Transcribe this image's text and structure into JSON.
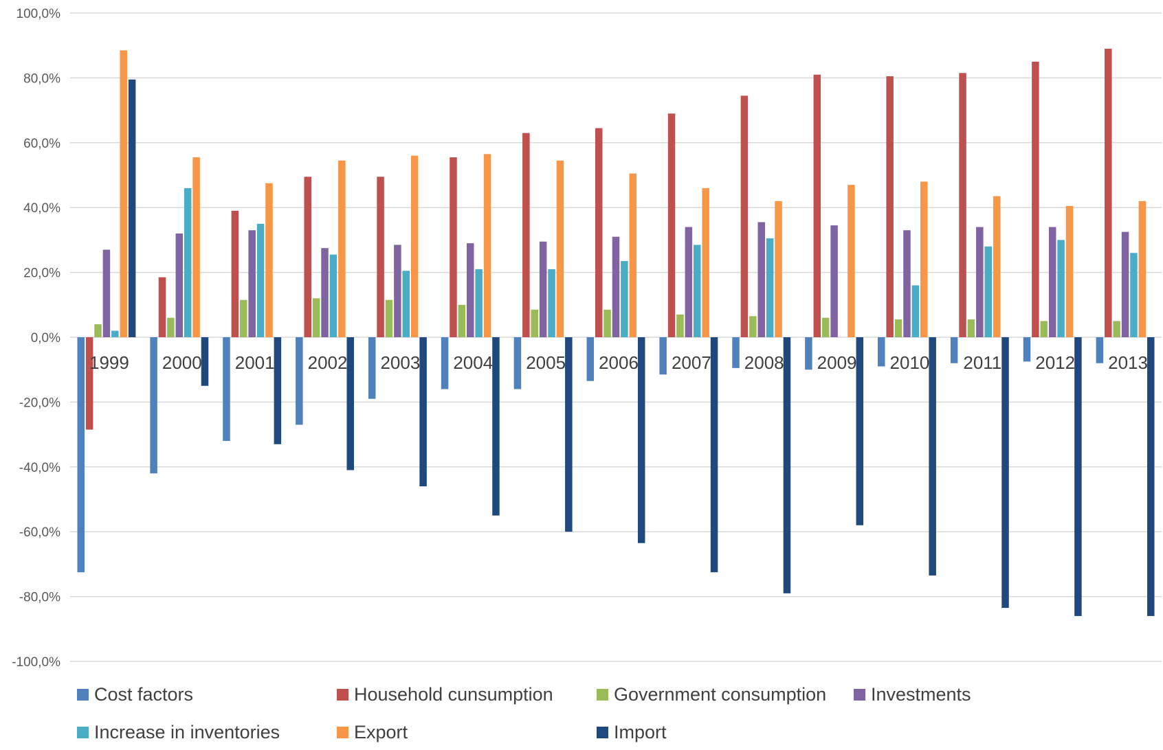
{
  "chart_data": {
    "type": "bar",
    "categories": [
      "1999",
      "2000",
      "2001",
      "2002",
      "2003",
      "2004",
      "2005",
      "2006",
      "2007",
      "2008",
      "2009",
      "2010",
      "2011",
      "2012",
      "2013"
    ],
    "series": [
      {
        "name": "Cost factors",
        "color": "#4f81bd",
        "values": [
          -72.5,
          -42.0,
          -32.0,
          -27.0,
          -19.0,
          -16.0,
          -16.0,
          -13.5,
          -11.5,
          -9.5,
          -10.0,
          -9.0,
          -8.0,
          -7.5,
          -8.0
        ]
      },
      {
        "name": "Household cunsumption",
        "color": "#c0504d",
        "values": [
          -28.5,
          18.5,
          39.0,
          49.5,
          49.5,
          55.5,
          63.0,
          64.5,
          69.0,
          74.5,
          81.0,
          80.5,
          81.5,
          85.0,
          89.0
        ]
      },
      {
        "name": "Government consumption",
        "color": "#9bbb59",
        "values": [
          4.0,
          6.0,
          11.5,
          12.0,
          11.5,
          10.0,
          8.5,
          8.5,
          7.0,
          6.5,
          6.0,
          5.5,
          5.5,
          5.0,
          5.0
        ]
      },
      {
        "name": "Investments",
        "color": "#8064a2",
        "values": [
          27.0,
          32.0,
          33.0,
          27.5,
          28.5,
          29.0,
          29.5,
          31.0,
          34.0,
          35.5,
          34.5,
          33.0,
          34.0,
          34.0,
          32.5
        ]
      },
      {
        "name": "Increase in inventories",
        "color": "#4bacc6",
        "values": [
          2.0,
          46.0,
          35.0,
          25.5,
          20.5,
          21.0,
          21.0,
          23.5,
          28.5,
          30.5,
          0.0,
          16.0,
          28.0,
          30.0,
          26.0
        ]
      },
      {
        "name": "Export",
        "color": "#f79646",
        "values": [
          88.5,
          55.5,
          47.5,
          54.5,
          56.0,
          56.5,
          54.5,
          50.5,
          46.0,
          42.0,
          47.0,
          48.0,
          43.5,
          40.5,
          42.0
        ]
      },
      {
        "name": "Import",
        "color": "#1f497d",
        "values": [
          79.5,
          -15.0,
          -33.0,
          -41.0,
          -46.0,
          -55.0,
          -60.0,
          -63.5,
          -72.5,
          -79.0,
          -58.0,
          -73.5,
          -83.5,
          -86.0,
          -86.0
        ]
      }
    ],
    "yticks": [
      "100,0%",
      "80,0%",
      "60,0%",
      "40,0%",
      "20,0%",
      "0,0%",
      "-20,0%",
      "-40,0%",
      "-60,0%",
      "-80,0%",
      "-100,0%"
    ],
    "ylim": [
      -100,
      100
    ],
    "grid": true,
    "legend_position": "bottom",
    "title": "",
    "xlabel": "",
    "ylabel": ""
  }
}
